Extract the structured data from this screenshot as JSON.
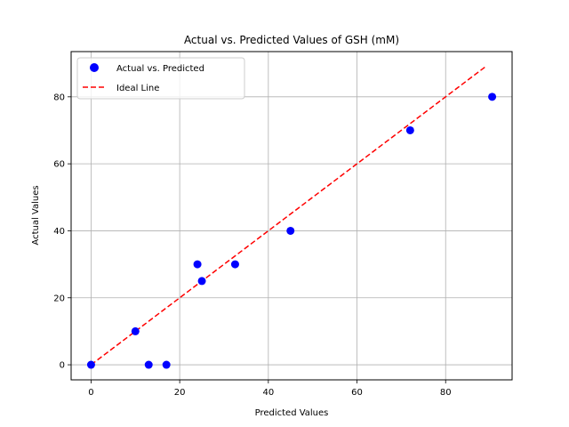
{
  "chart_data": {
    "type": "scatter",
    "title": "Actual vs. Predicted Values of GSH (mM)",
    "xlabel": "Predicted Values",
    "ylabel": "Actual Values",
    "xlim": [
      -4.5,
      95
    ],
    "ylim": [
      -4.5,
      93.5
    ],
    "xticks": [
      0,
      20,
      40,
      60,
      80
    ],
    "yticks": [
      0,
      20,
      40,
      60,
      80
    ],
    "grid": true,
    "legend_position": "upper-left",
    "series": [
      {
        "name": "Actual vs. Predicted",
        "kind": "scatter",
        "color": "#0000ff",
        "points": [
          {
            "x": 0,
            "y": 0
          },
          {
            "x": 10,
            "y": 10
          },
          {
            "x": 13,
            "y": 0
          },
          {
            "x": 17,
            "y": 0
          },
          {
            "x": 24,
            "y": 30
          },
          {
            "x": 25,
            "y": 25
          },
          {
            "x": 32.5,
            "y": 30
          },
          {
            "x": 45,
            "y": 40
          },
          {
            "x": 72,
            "y": 70
          },
          {
            "x": 90.5,
            "y": 80
          }
        ]
      },
      {
        "name": "Ideal Line",
        "kind": "line",
        "style": "dashed",
        "color": "#ff0000",
        "points": [
          {
            "x": 0,
            "y": 0
          },
          {
            "x": 89,
            "y": 89
          }
        ]
      }
    ]
  }
}
